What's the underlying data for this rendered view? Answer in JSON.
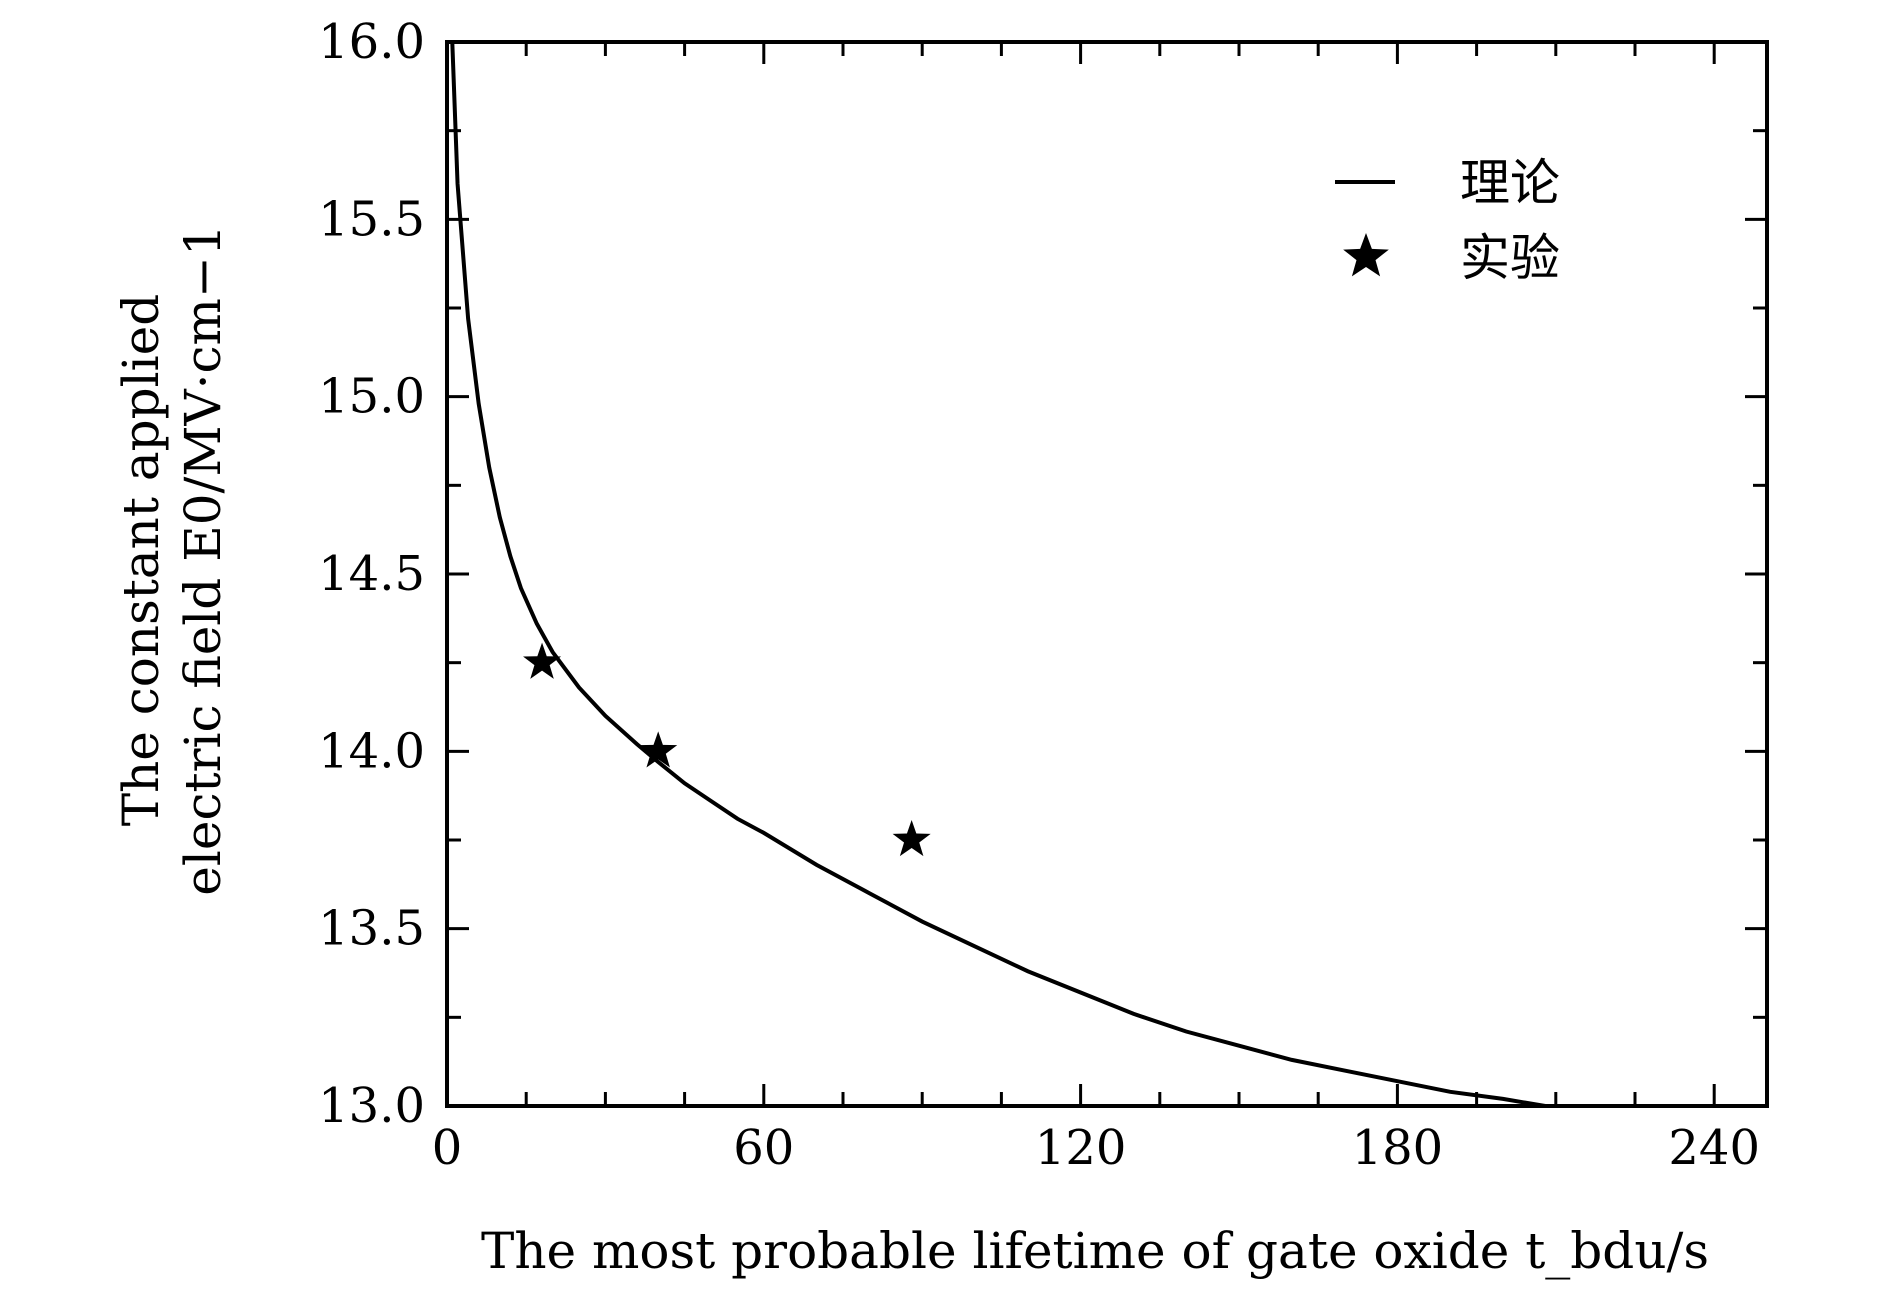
{
  "chart_data": {
    "type": "line",
    "xlabel": "The most probable lifetime of gate oxide t_bdu/s",
    "ylabel": [
      "The constant applied",
      "electric field E0/MV·cm−1"
    ],
    "xlim": [
      0,
      250
    ],
    "ylim": [
      13.0,
      16.0
    ],
    "x_ticks": [
      0,
      60,
      120,
      180,
      240
    ],
    "x_tick_labels": [
      "0",
      "60",
      "120",
      "180",
      "240"
    ],
    "y_ticks": [
      13.0,
      13.5,
      14.0,
      14.5,
      15.0,
      15.5,
      16.0
    ],
    "y_tick_labels": [
      "13.0",
      "13.5",
      "14.0",
      "14.5",
      "15.0",
      "15.5",
      "16.0"
    ],
    "legend": {
      "position": "top-right",
      "entries": [
        "理论",
        "实验"
      ]
    },
    "series": [
      {
        "name": "理论",
        "style": "line",
        "color": "#000000",
        "x": [
          1,
          2,
          4,
          6,
          8,
          10,
          12,
          14,
          17,
          20,
          25,
          30,
          36,
          40,
          45,
          50,
          55,
          60,
          70,
          80,
          90,
          100,
          110,
          120,
          130,
          140,
          150,
          160,
          170,
          180,
          190,
          200,
          208
        ],
        "y": [
          16.0,
          15.6,
          15.22,
          14.98,
          14.8,
          14.66,
          14.55,
          14.46,
          14.36,
          14.28,
          14.18,
          14.1,
          14.02,
          13.97,
          13.91,
          13.86,
          13.81,
          13.77,
          13.68,
          13.6,
          13.52,
          13.45,
          13.38,
          13.32,
          13.26,
          13.21,
          13.17,
          13.13,
          13.1,
          13.07,
          13.04,
          13.02,
          13.0
        ]
      },
      {
        "name": "实验",
        "style": "star",
        "color": "#000000",
        "x": [
          18,
          40,
          88
        ],
        "y": [
          14.25,
          14.0,
          13.75
        ]
      }
    ]
  }
}
